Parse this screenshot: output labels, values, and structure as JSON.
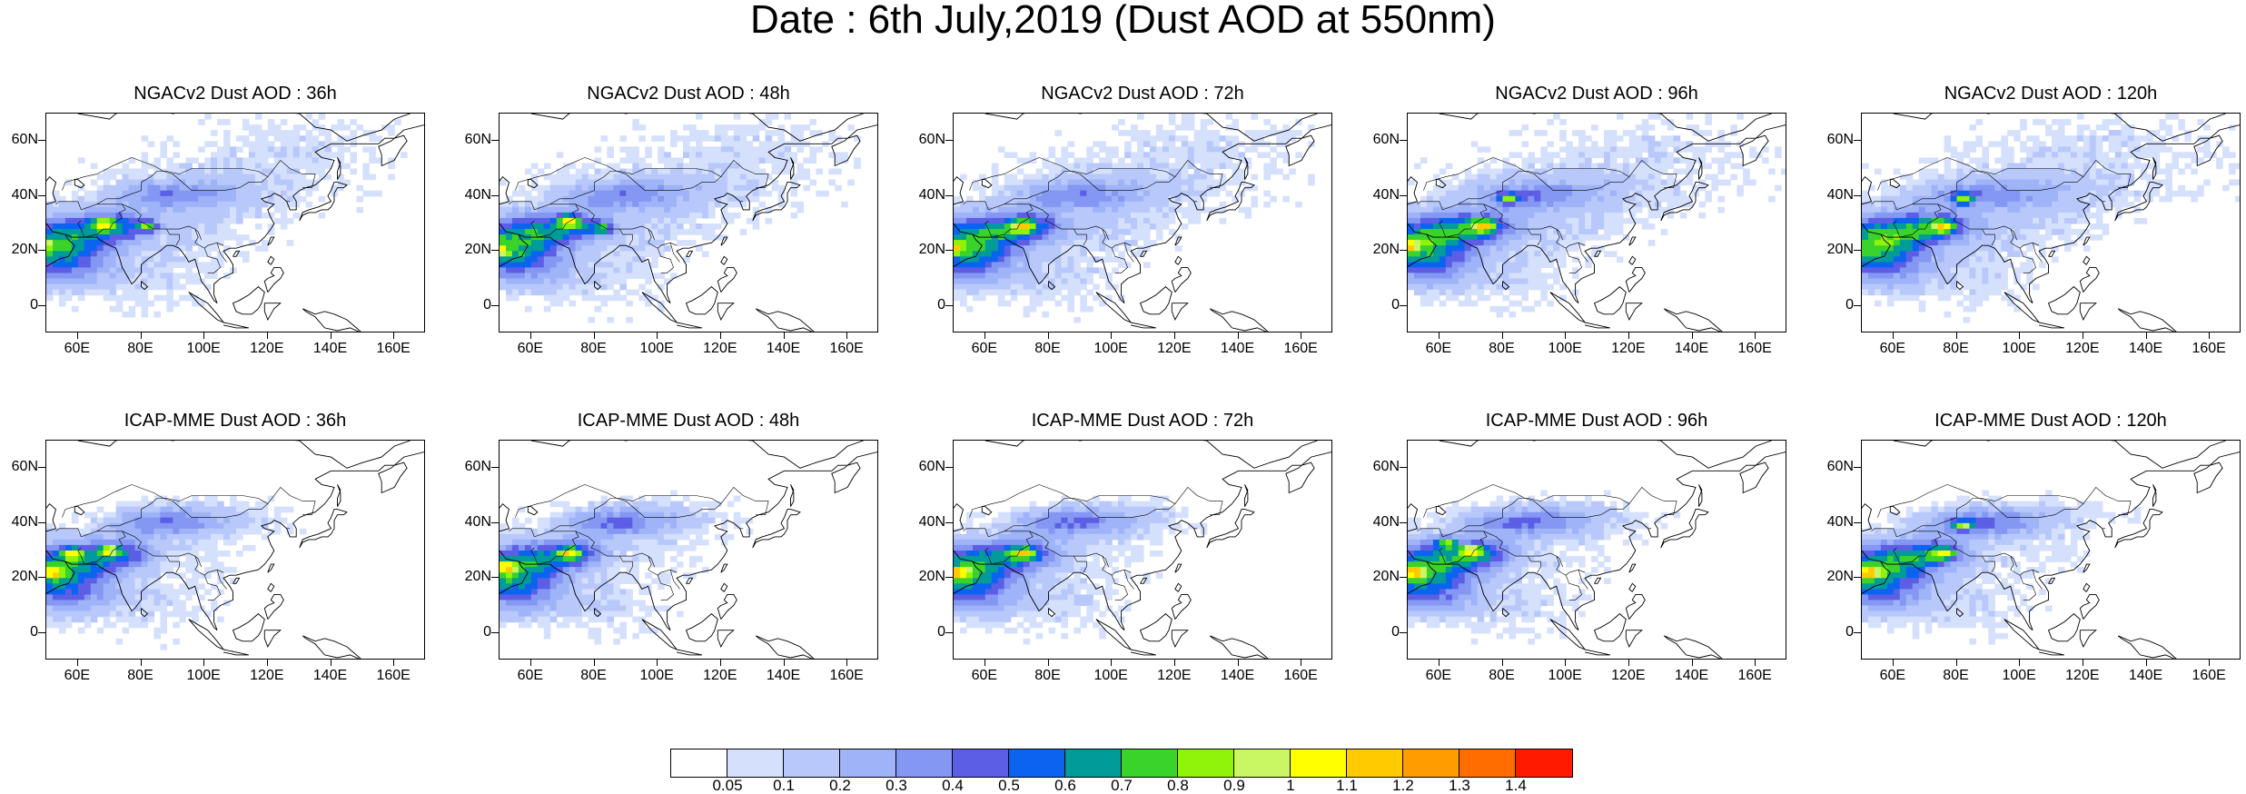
{
  "title": "Date : 6th July,2019 (Dust AOD at 550nm)",
  "axes": {
    "lat_ticks": [
      "60N",
      "40N",
      "20N",
      "0"
    ],
    "lat_values": [
      60,
      40,
      20,
      0
    ],
    "lon_ticks": [
      "60E",
      "80E",
      "100E",
      "120E",
      "140E",
      "160E"
    ],
    "lon_values": [
      60,
      80,
      100,
      120,
      140,
      160
    ],
    "lon_range": [
      50,
      170
    ],
    "lat_range": [
      -10,
      70
    ]
  },
  "panels": [
    {
      "title": "NGACv2 Dust AOD : 36h",
      "model": "NGACv2",
      "lead": 36,
      "spread": 1.0,
      "hot": [
        [
          68,
          30
        ],
        [
          82,
          29
        ],
        [
          48,
          22
        ]
      ]
    },
    {
      "title": "NGACv2 Dust AOD : 48h",
      "model": "NGACv2",
      "lead": 48,
      "spread": 1.05,
      "hot": [
        [
          72,
          31
        ],
        [
          83,
          28
        ],
        [
          49,
          20
        ]
      ]
    },
    {
      "title": "NGACv2 Dust AOD : 72h",
      "model": "NGACv2",
      "lead": 72,
      "spread": 1.1,
      "hot": [
        [
          72,
          29
        ],
        [
          49,
          21
        ]
      ]
    },
    {
      "title": "NGACv2 Dust AOD : 96h",
      "model": "NGACv2",
      "lead": 96,
      "spread": 1.15,
      "hot": [
        [
          82,
          39
        ],
        [
          74,
          29
        ],
        [
          50,
          22
        ]
      ]
    },
    {
      "title": "NGACv2 Dust AOD : 120h",
      "model": "NGACv2",
      "lead": 120,
      "spread": 1.2,
      "hot": [
        [
          82,
          39
        ],
        [
          76,
          29
        ]
      ]
    },
    {
      "title": "ICAP-MME Dust AOD : 36h",
      "model": "ICAP-MME",
      "lead": 36,
      "spread": 1.0,
      "hot": [
        [
          58,
          29
        ],
        [
          52,
          22
        ],
        [
          70,
          30
        ]
      ]
    },
    {
      "title": "ICAP-MME Dust AOD : 48h",
      "model": "ICAP-MME",
      "lead": 48,
      "spread": 1.0,
      "hot": [
        [
          72,
          29
        ],
        [
          52,
          24
        ]
      ]
    },
    {
      "title": "ICAP-MME Dust AOD : 72h",
      "model": "ICAP-MME",
      "lead": 72,
      "spread": 1.05,
      "hot": [
        [
          72,
          29
        ],
        [
          52,
          22
        ]
      ]
    },
    {
      "title": "ICAP-MME Dust AOD : 96h",
      "model": "ICAP-MME",
      "lead": 96,
      "spread": 1.1,
      "hot": [
        [
          70,
          30
        ],
        [
          52,
          22
        ],
        [
          62,
          33
        ]
      ]
    },
    {
      "title": "ICAP-MME Dust AOD : 120h",
      "model": "ICAP-MME",
      "lead": 120,
      "spread": 1.1,
      "hot": [
        [
          82,
          39
        ],
        [
          76,
          29
        ],
        [
          52,
          22
        ]
      ]
    }
  ],
  "colorbar": {
    "labels": [
      "0.05",
      "0.1",
      "0.2",
      "0.3",
      "0.4",
      "0.5",
      "0.6",
      "0.7",
      "0.8",
      "0.9",
      "1",
      "1.1",
      "1.2",
      "1.3",
      "1.4"
    ],
    "colors": [
      "#ffffff",
      "#d5e0fd",
      "#b8c8fb",
      "#9fb3f8",
      "#8497f2",
      "#5c5fe6",
      "#0b63f0",
      "#019b9a",
      "#3ad32b",
      "#8ff40a",
      "#c8f763",
      "#ffff00",
      "#ffcb00",
      "#ff9d00",
      "#ff6d00",
      "#ff1a00"
    ]
  }
}
